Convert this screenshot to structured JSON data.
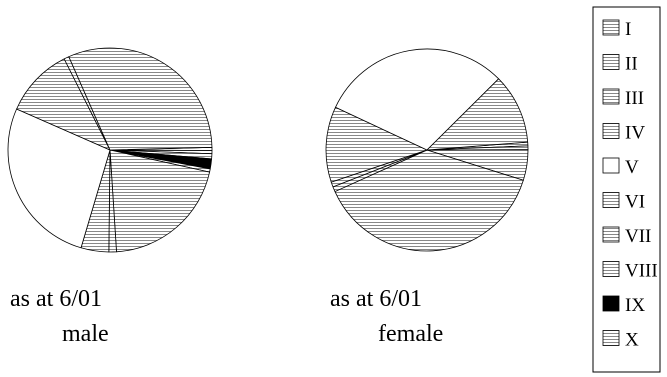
{
  "chart_data": {
    "type": "pie",
    "legend": {
      "placement": "right",
      "entries": [
        {
          "label": "I",
          "fill": "hatch"
        },
        {
          "label": "II",
          "fill": "hatch"
        },
        {
          "label": "III",
          "fill": "hatch"
        },
        {
          "label": "IV",
          "fill": "hatch"
        },
        {
          "label": "V",
          "fill": "white"
        },
        {
          "label": "VI",
          "fill": "hatch"
        },
        {
          "label": "VII",
          "fill": "hatch"
        },
        {
          "label": "VIII",
          "fill": "hatch"
        },
        {
          "label": "IX",
          "fill": "black"
        },
        {
          "label": "X",
          "fill": "hatch"
        }
      ]
    },
    "charts": [
      {
        "caption_line1": "as at 6/01",
        "caption_line2": "male",
        "segments": [
          {
            "category": "I",
            "value": 0.5
          },
          {
            "category": "II",
            "value": 0.5
          },
          {
            "category": "III",
            "value": 0.8
          },
          {
            "category": "IX",
            "value": 1.6
          },
          {
            "category": "X",
            "value": 0.5
          },
          {
            "category": "VIII",
            "value": 20.5
          },
          {
            "category": "VII",
            "value": 1.2
          },
          {
            "category": "VI",
            "value": 4.4
          },
          {
            "category": "V",
            "value": 27.0
          },
          {
            "category": "IV",
            "value": 11.0
          },
          {
            "category": "III",
            "value": 0.8
          },
          {
            "category": "II",
            "value": 31.2
          }
        ]
      },
      {
        "caption_line1": "as at 6/01",
        "caption_line2": "female",
        "segments": [
          {
            "category": "I",
            "value": 0.6
          },
          {
            "category": "II",
            "value": 0.6
          },
          {
            "category": "III",
            "value": 4.9
          },
          {
            "category": "IV",
            "value": 38.4
          },
          {
            "category": "VI",
            "value": 0.8
          },
          {
            "category": "VII",
            "value": 0.8
          },
          {
            "category": "VIII",
            "value": 12.1
          },
          {
            "category": "V",
            "value": 30.6
          },
          {
            "category": "X",
            "value": 11.2
          }
        ]
      }
    ]
  }
}
